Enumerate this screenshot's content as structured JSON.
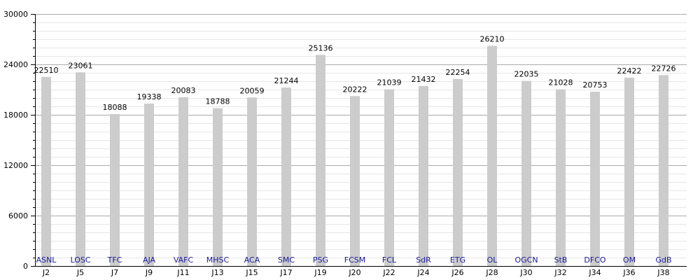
{
  "chart_data": {
    "type": "bar",
    "categories": [
      "J2",
      "J5",
      "J7",
      "J9",
      "J11",
      "J13",
      "J15",
      "J17",
      "J19",
      "J20",
      "J22",
      "J24",
      "J26",
      "J28",
      "J30",
      "J32",
      "J34",
      "J36",
      "J38"
    ],
    "teams": [
      "ASNL",
      "LOSC",
      "TFC",
      "AJA",
      "VAFC",
      "MHSC",
      "ACA",
      "SMC",
      "PSG",
      "FCSM",
      "FCL",
      "SdR",
      "ETG",
      "OL",
      "OGCN",
      "StB",
      "DFCO",
      "OM",
      "GdB"
    ],
    "values": [
      22510,
      23061,
      18088,
      19338,
      20083,
      18788,
      20059,
      21244,
      25136,
      20222,
      21039,
      21432,
      22254,
      26210,
      22035,
      21028,
      20753,
      22422,
      22726
    ],
    "value_labels": [
      "22510",
      "23061",
      "18088",
      "19338",
      "20083",
      "18788",
      "20059",
      "21244",
      "25136",
      "20222",
      "21039",
      "21432",
      "22254",
      "26210",
      "22035",
      "21028",
      "20753",
      "22422",
      "22726"
    ],
    "ylim": [
      0,
      30000
    ],
    "yticks": [
      0,
      6000,
      12000,
      18000,
      24000,
      30000
    ],
    "ytick_labels": [
      "0",
      "6000",
      "12000",
      "18000",
      "24000",
      "30000"
    ],
    "minor_tick_step": 1000,
    "title": "",
    "xlabel": "",
    "ylabel": "",
    "grid": true,
    "colors": {
      "bar": "#cccccc",
      "team_label": "#1a1a99",
      "major_grid": "#aaaaaa",
      "minor_grid": "#e6e6e6",
      "axis": "#000000"
    }
  }
}
